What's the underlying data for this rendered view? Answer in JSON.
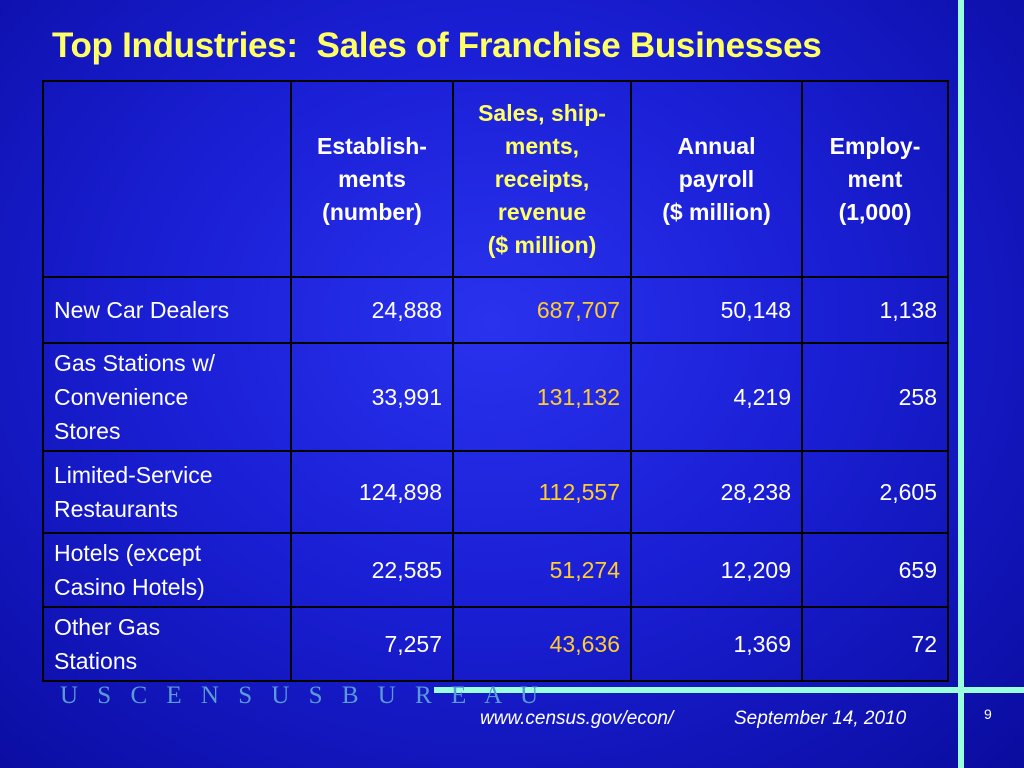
{
  "title": "Top Industries:  Sales of Franchise Businesses",
  "table": {
    "headers": [
      "",
      "Establish-\nments\n(number)",
      "Sales, ship-\nments,\nreceipts,\nrevenue\n($ million)",
      "Annual\npayroll\n($ million)",
      "Employ-\nment\n(1,000)"
    ],
    "rows": [
      {
        "label": "New Car Dealers",
        "establishments": "24,888",
        "sales": "687,707",
        "payroll": "50,148",
        "employment": "1,138"
      },
      {
        "label": "Gas Stations w/\nConvenience\nStores",
        "establishments": "33,991",
        "sales": "131,132",
        "payroll": "4,219",
        "employment": "258"
      },
      {
        "label": "Limited-Service\nRestaurants",
        "establishments": "124,898",
        "sales": "112,557",
        "payroll": "28,238",
        "employment": "2,605"
      },
      {
        "label": "Hotels (except\nCasino Hotels)",
        "establishments": "22,585",
        "sales": "51,274",
        "payroll": "12,209",
        "employment": "659"
      },
      {
        "label": "Other Gas\nStations",
        "establishments": "7,257",
        "sales": "43,636",
        "payroll": "1,369",
        "employment": "72"
      }
    ]
  },
  "footer": {
    "bureau": "USCENSUSBUREAU",
    "url": "www.census.gov/econ/",
    "date": "September 14, 2010",
    "page": "9"
  },
  "colors": {
    "background": "#1a1fd4",
    "title": "#ffff66",
    "sales_values": "#ffcc33",
    "accent_lines": "#99ffdd",
    "bureau_text": "#5a9ad6"
  }
}
